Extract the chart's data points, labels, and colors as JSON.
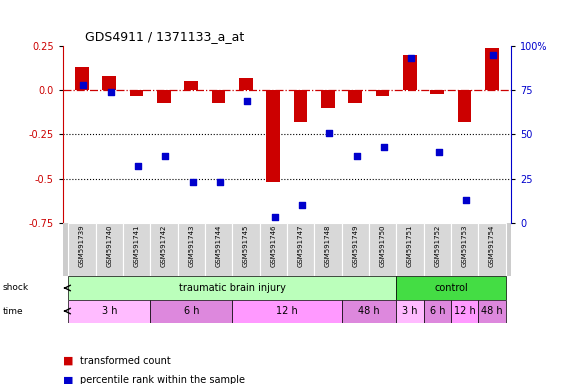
{
  "title": "GDS4911 / 1371133_a_at",
  "samples": [
    "GSM591739",
    "GSM591740",
    "GSM591741",
    "GSM591742",
    "GSM591743",
    "GSM591744",
    "GSM591745",
    "GSM591746",
    "GSM591747",
    "GSM591748",
    "GSM591749",
    "GSM591750",
    "GSM591751",
    "GSM591752",
    "GSM591753",
    "GSM591754"
  ],
  "red_values": [
    0.13,
    0.08,
    -0.03,
    -0.07,
    0.05,
    -0.07,
    0.07,
    -0.52,
    -0.18,
    -0.1,
    -0.07,
    -0.03,
    0.2,
    -0.02,
    -0.18,
    0.24
  ],
  "blue_percentiles": [
    78,
    74,
    32,
    38,
    23,
    23,
    69,
    3,
    10,
    51,
    38,
    43,
    93,
    40,
    13,
    95
  ],
  "ylim_left": [
    -0.75,
    0.25
  ],
  "ylim_right": [
    0,
    100
  ],
  "y_ticks_left": [
    0.25,
    0.0,
    -0.25,
    -0.5,
    -0.75
  ],
  "y_ticks_right": [
    100,
    75,
    50,
    25,
    0
  ],
  "hline_y": 0.0,
  "dotted_lines": [
    -0.25,
    -0.5
  ],
  "shock_groups": [
    {
      "label": "traumatic brain injury",
      "start": 0,
      "end": 12,
      "color": "#bbffbb"
    },
    {
      "label": "control",
      "start": 12,
      "end": 16,
      "color": "#44dd44"
    }
  ],
  "time_groups": [
    {
      "label": "3 h",
      "start": 0,
      "end": 3,
      "color": "#ffbbff"
    },
    {
      "label": "6 h",
      "start": 3,
      "end": 6,
      "color": "#dd88dd"
    },
    {
      "label": "12 h",
      "start": 6,
      "end": 10,
      "color": "#ff99ff"
    },
    {
      "label": "48 h",
      "start": 10,
      "end": 12,
      "color": "#dd88dd"
    },
    {
      "label": "3 h",
      "start": 12,
      "end": 13,
      "color": "#ffbbff"
    },
    {
      "label": "6 h",
      "start": 13,
      "end": 14,
      "color": "#dd88dd"
    },
    {
      "label": "12 h",
      "start": 14,
      "end": 15,
      "color": "#ff99ff"
    },
    {
      "label": "48 h",
      "start": 15,
      "end": 16,
      "color": "#dd88dd"
    }
  ],
  "bar_color_red": "#cc0000",
  "bar_color_blue": "#0000cc",
  "background_color": "#ffffff"
}
